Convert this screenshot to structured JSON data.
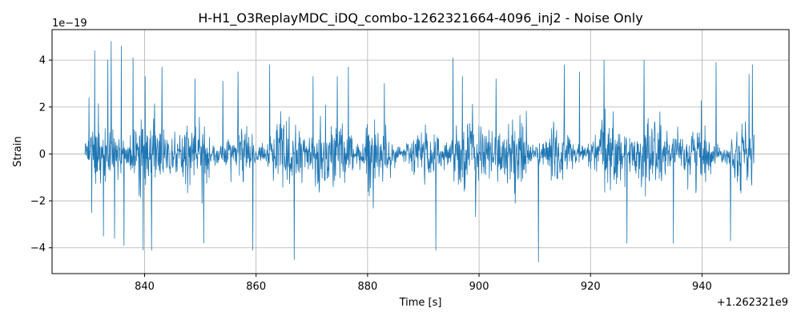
{
  "chart_data": {
    "type": "line",
    "title": "H-H1_O3ReplayMDC_iDQ_combo-1262321664-4096_inj2 - Noise Only",
    "xlabel": "Time [s]",
    "ylabel": "Strain",
    "x_offset_label": "+1.262321e9",
    "y_scale_label": "1e−19",
    "xlim": [
      1262321823.4,
      1262321955.6
    ],
    "ylim": [
      -5.1e-19,
      5.3e-19
    ],
    "x_ticks": [
      1262321840,
      1262321860,
      1262321880,
      1262321900,
      1262321920,
      1262321940
    ],
    "x_tick_labels": [
      "840",
      "860",
      "880",
      "900",
      "920",
      "940"
    ],
    "y_ticks": [
      -4e-19,
      -2e-19,
      0,
      2e-19,
      4e-19
    ],
    "y_tick_labels": [
      "−4",
      "−2",
      "0",
      "2",
      "4"
    ],
    "grid": true,
    "series": [
      {
        "color": "#1f77b4",
        "x_range": [
          1262321829.3,
          1262321949.4
        ],
        "typical_amplitude": 1.3e-19,
        "peaks": [
          {
            "x": 1262321830.0,
            "y": 2.4e-19
          },
          {
            "x": 1262321830.5,
            "y": -2.5e-19
          },
          {
            "x": 1262321831.0,
            "y": 4.4e-19
          },
          {
            "x": 1262321832.6,
            "y": -3.5e-19
          },
          {
            "x": 1262321833.4,
            "y": 4e-19
          },
          {
            "x": 1262321834.0,
            "y": 4.8e-19
          },
          {
            "x": 1262321834.6,
            "y": -3.6e-19
          },
          {
            "x": 1262321835.8,
            "y": 4.6e-19
          },
          {
            "x": 1262321836.3,
            "y": -3.9e-19
          },
          {
            "x": 1262321837.9,
            "y": 4.1e-19
          },
          {
            "x": 1262321839.7,
            "y": -4.1e-19
          },
          {
            "x": 1262321840.1,
            "y": 3.3e-19
          },
          {
            "x": 1262321841.2,
            "y": -4.1e-19
          },
          {
            "x": 1262321843.1,
            "y": 3.7e-19
          },
          {
            "x": 1262321849.0,
            "y": 3.2e-19
          },
          {
            "x": 1262321850.6,
            "y": -3.8e-19
          },
          {
            "x": 1262321854.0,
            "y": 3.1e-19
          },
          {
            "x": 1262321856.7,
            "y": 3.5e-19
          },
          {
            "x": 1262321859.4,
            "y": -4.1e-19
          },
          {
            "x": 1262321862.4,
            "y": 3.8e-19
          },
          {
            "x": 1262321866.8,
            "y": -4.5e-19
          },
          {
            "x": 1262321870.2,
            "y": 3.3e-19
          },
          {
            "x": 1262321876.5,
            "y": 3.7e-19
          },
          {
            "x": 1262321883.0,
            "y": 3e-19
          },
          {
            "x": 1262321892.2,
            "y": -4.1e-19
          },
          {
            "x": 1262321895.3,
            "y": 4.1e-19
          },
          {
            "x": 1262321897.0,
            "y": 3.3e-19
          },
          {
            "x": 1262321903.0,
            "y": 3.2e-19
          },
          {
            "x": 1262321910.6,
            "y": -4.6e-19
          },
          {
            "x": 1262321915.3,
            "y": 3.8e-19
          },
          {
            "x": 1262321918.0,
            "y": 3.5e-19
          },
          {
            "x": 1262321922.4,
            "y": 4e-19
          },
          {
            "x": 1262321926.5,
            "y": -3.8e-19
          },
          {
            "x": 1262321929.6,
            "y": 4e-19
          },
          {
            "x": 1262321934.8,
            "y": -3.8e-19
          },
          {
            "x": 1262321942.5,
            "y": 3.9e-19
          },
          {
            "x": 1262321945.1,
            "y": -3.7e-19
          },
          {
            "x": 1262321948.4,
            "y": 3.4e-19
          },
          {
            "x": 1262321949.0,
            "y": 3.8e-19
          }
        ]
      }
    ]
  }
}
